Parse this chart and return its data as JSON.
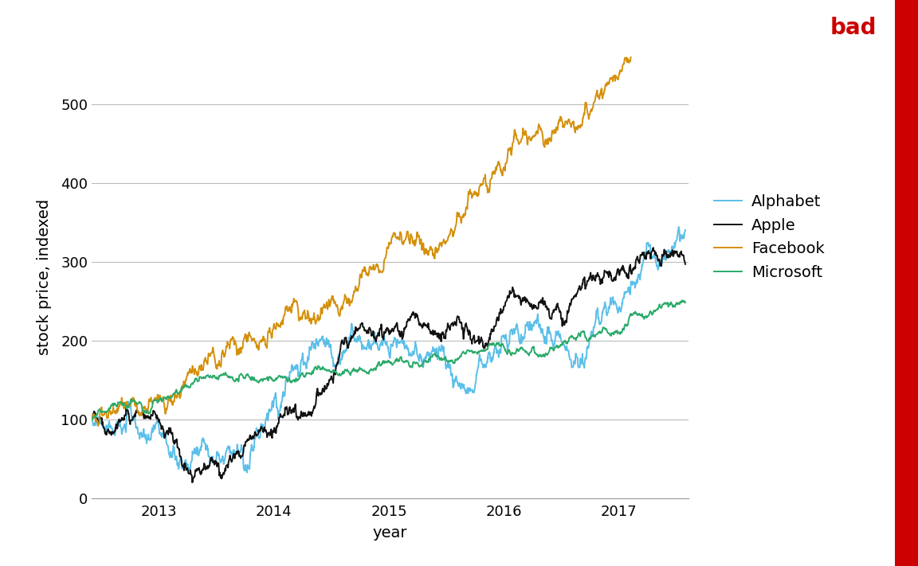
{
  "title": "bad",
  "title_color": "#cc0000",
  "xlabel": "year",
  "ylabel": "stock price, indexed",
  "ylim": [
    0,
    560
  ],
  "yticks": [
    0,
    100,
    200,
    300,
    400,
    500
  ],
  "background_color": "#ffffff",
  "colors": {
    "Alphabet": "#5BBFE8",
    "Apple": "#111111",
    "Facebook": "#D4900A",
    "Microsoft": "#2AAA6A"
  },
  "legend_labels": [
    "Alphabet",
    "Apple",
    "Facebook",
    "Microsoft"
  ],
  "line_width": 1.4,
  "grid_color": "#bbbbbb",
  "seed": 12345
}
